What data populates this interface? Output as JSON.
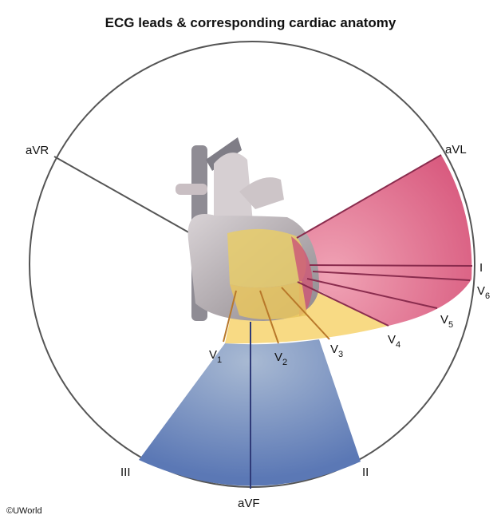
{
  "title": "ECG leads & corresponding cardiac anatomy",
  "leads": {
    "aVR": "aVR",
    "aVL": "aVL",
    "I": "I",
    "II": "II",
    "III": "III",
    "aVF": "aVF",
    "V1": {
      "base": "V",
      "sub": "1"
    },
    "V2": {
      "base": "V",
      "sub": "2"
    },
    "V3": {
      "base": "V",
      "sub": "3"
    },
    "V4": {
      "base": "V",
      "sub": "4"
    },
    "V5": {
      "base": "V",
      "sub": "5"
    },
    "V6": {
      "base": "V",
      "sub": "6"
    }
  },
  "regions": {
    "lateral": {
      "color": "#df6a8a"
    },
    "anterior": {
      "color": "#f7d77a"
    },
    "inferior": {
      "color": "#5f7db8"
    }
  },
  "copyright": "©UWorld"
}
